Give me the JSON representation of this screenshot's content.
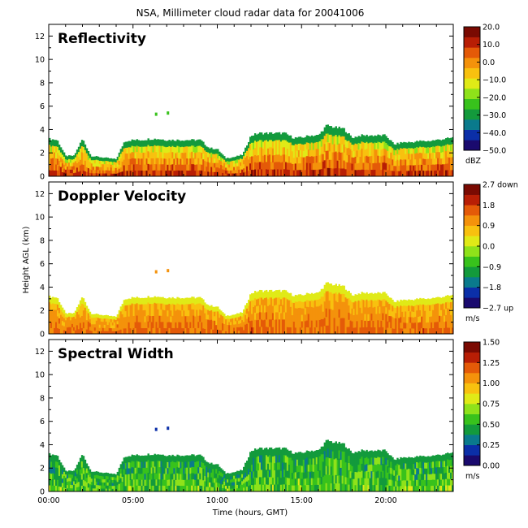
{
  "figure": {
    "title": "NSA, Millimeter cloud radar data for 20041006",
    "ylabel": "Height AGL (km)",
    "xlabel": "Time (hours, GMT)",
    "xticks": [
      "00:00",
      "05:00",
      "10:00",
      "15:00",
      "20:00"
    ],
    "yticks": [
      "0",
      "2",
      "4",
      "6",
      "8",
      "10",
      "12"
    ]
  },
  "colors": {
    "background": "#ffffff",
    "axes": "#000000",
    "scale": [
      "#1a0a6e",
      "#0b2fa8",
      "#0a7a8c",
      "#139a3c",
      "#38c21c",
      "#8fe21a",
      "#e0ea17",
      "#f8c10f",
      "#f4920b",
      "#e45a08",
      "#b81e05",
      "#7a0a02"
    ]
  },
  "panels": [
    {
      "label": "Reflectivity",
      "colorbar_ticks": [
        "20.0",
        "10.0",
        "0.0",
        "−10.0",
        "−20.0",
        "−30.0",
        "−40.0",
        "−50.0"
      ],
      "colorbar_unit": "dBZ"
    },
    {
      "label": "Doppler Velocity",
      "colorbar_ticks": [
        "2.7 down",
        "1.8",
        "0.9",
        "0.0",
        "−0.9",
        "−1.8",
        "−2.7 up"
      ],
      "colorbar_unit": "m/s"
    },
    {
      "label": "Spectral Width",
      "colorbar_ticks": [
        "1.50",
        "1.25",
        "1.00",
        "0.75",
        "0.50",
        "0.25",
        "0.00"
      ],
      "colorbar_unit": "m/s"
    }
  ],
  "chart_data": {
    "type": "heatmap",
    "title": "NSA, Millimeter cloud radar data for 20041006",
    "xlabel": "Time (hours, GMT)",
    "ylabel": "Height AGL (km)",
    "xlim": [
      0,
      24
    ],
    "ylim": [
      0,
      13
    ],
    "cloud_top_km": {
      "time_hours": [
        0.0,
        0.5,
        1.0,
        1.5,
        2.0,
        2.5,
        3.0,
        3.5,
        4.0,
        4.5,
        5.0,
        5.5,
        6.0,
        6.5,
        7.0,
        7.5,
        8.0,
        8.5,
        9.0,
        9.5,
        10.0,
        10.5,
        11.0,
        11.5,
        12.0,
        12.5,
        13.0,
        13.5,
        14.0,
        14.5,
        15.0,
        15.5,
        16.0,
        16.5,
        17.0,
        17.5,
        18.0,
        18.5,
        19.0,
        19.5,
        20.0,
        20.5,
        21.0,
        21.5,
        22.0,
        22.5,
        23.0,
        23.5,
        24.0
      ],
      "height_km": [
        3.3,
        3.2,
        1.8,
        1.8,
        3.3,
        1.8,
        1.7,
        1.6,
        1.5,
        3.1,
        3.2,
        3.2,
        3.3,
        3.3,
        3.2,
        3.2,
        3.2,
        3.2,
        3.2,
        2.5,
        2.4,
        1.6,
        1.7,
        1.9,
        3.6,
        3.8,
        3.8,
        3.8,
        3.8,
        3.4,
        3.4,
        3.6,
        3.6,
        4.5,
        4.3,
        4.2,
        3.4,
        3.6,
        3.6,
        3.6,
        3.6,
        2.8,
        3.0,
        3.0,
        3.1,
        3.1,
        3.2,
        3.3,
        3.4
      ]
    },
    "isolated_echo": {
      "time_hours": [
        6.3,
        7.0
      ],
      "height_km": [
        5.3,
        5.4
      ]
    },
    "series": [
      {
        "name": "Reflectivity",
        "unit": "dBZ",
        "range": [
          -50,
          20
        ]
      },
      {
        "name": "Doppler Velocity",
        "unit": "m/s",
        "range": [
          -2.7,
          2.7
        ]
      },
      {
        "name": "Spectral Width",
        "unit": "m/s",
        "range": [
          0,
          1.5
        ]
      }
    ]
  }
}
